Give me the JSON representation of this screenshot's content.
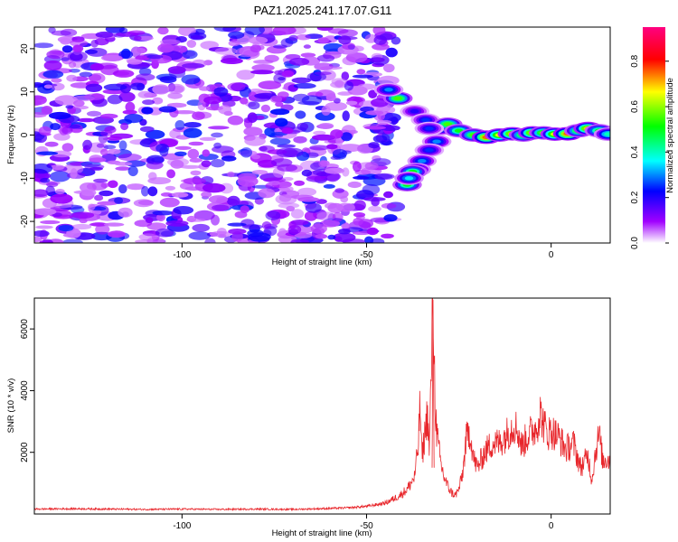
{
  "figure_title": "PAZ1.2025.241.17.07.G11",
  "chart_data": [
    {
      "type": "heatmap",
      "name": "spectrogram",
      "title": "PAZ1.2025.241.17.07.G11",
      "xlabel": "Height of straight line (km)",
      "ylabel": "Frequency (Hz)",
      "xlim": [
        -140,
        16
      ],
      "ylim": [
        -25,
        25
      ],
      "x_ticks": [
        -100,
        -50,
        0
      ],
      "y_ticks": [
        -20,
        -10,
        0,
        10,
        20
      ],
      "colorbar": {
        "label": "Normalized spectral amplitude",
        "range": [
          0,
          0.95
        ],
        "ticks": [
          0,
          0.2,
          0.4,
          0.6,
          0.8
        ],
        "colormap": [
          "#ffffff",
          "#a000ff",
          "#0000ff",
          "#00ffff",
          "#00ff00",
          "#ffff00",
          "#ff0000",
          "#ff0080"
        ]
      },
      "noise_region": {
        "x_range": [
          -140,
          -42
        ],
        "amplitude_range": [
          0.05,
          0.25
        ]
      },
      "signal_blobs": [
        {
          "x": -41.5,
          "y": 8.5,
          "amp": 0.55
        },
        {
          "x": -44,
          "y": 10.5,
          "amp": 0.3
        },
        {
          "x": -37,
          "y": 5.5,
          "amp": 0.2
        },
        {
          "x": -34,
          "y": 3.5,
          "amp": 0.25
        },
        {
          "x": -30,
          "y": 1.5,
          "amp": 0.35
        },
        {
          "x": -28,
          "y": 2.5,
          "amp": 0.55
        },
        {
          "x": -25,
          "y": 1,
          "amp": 0.5
        },
        {
          "x": -21,
          "y": 0,
          "amp": 0.55
        },
        {
          "x": -17.5,
          "y": -0.5,
          "amp": 0.75
        },
        {
          "x": -14,
          "y": 0,
          "amp": 0.65
        },
        {
          "x": -10.5,
          "y": 0.3,
          "amp": 0.7
        },
        {
          "x": -7.5,
          "y": 0,
          "amp": 0.55
        },
        {
          "x": -5,
          "y": 0.5,
          "amp": 0.7
        },
        {
          "x": -2,
          "y": 0.5,
          "amp": 0.6
        },
        {
          "x": 1,
          "y": 0.2,
          "amp": 0.65
        },
        {
          "x": 4.5,
          "y": 0.3,
          "amp": 0.75
        },
        {
          "x": 7.5,
          "y": 1,
          "amp": 0.55
        },
        {
          "x": 10,
          "y": 1.5,
          "amp": 0.7
        },
        {
          "x": 13,
          "y": 1,
          "amp": 0.5
        },
        {
          "x": 15.5,
          "y": 0.2,
          "amp": 0.4
        },
        {
          "x": -31,
          "y": -1.5,
          "amp": 0.3
        },
        {
          "x": -33,
          "y": -3.5,
          "amp": 0.25
        },
        {
          "x": -35,
          "y": -6,
          "amp": 0.3
        },
        {
          "x": -36.5,
          "y": -8,
          "amp": 0.35
        },
        {
          "x": -37.5,
          "y": -8.5,
          "amp": 0.5
        },
        {
          "x": -39,
          "y": -11.5,
          "amp": 0.5
        },
        {
          "x": -38.5,
          "y": -10,
          "amp": 0.35
        },
        {
          "x": -33,
          "y": 1.5,
          "amp": 0.25
        }
      ]
    },
    {
      "type": "line",
      "name": "snr",
      "xlabel": "Height of straight line (km)",
      "ylabel": "SNR (10 * v/v)",
      "xlim": [
        -140,
        16
      ],
      "ylim": [
        0,
        7000
      ],
      "x_ticks": [
        -100,
        -50,
        0
      ],
      "y_ticks": [
        2000,
        4000,
        6000
      ],
      "color": "#e8262b",
      "series": [
        {
          "name": "SNR",
          "points": [
            [
              -140,
              160
            ],
            [
              -130,
              170
            ],
            [
              -120,
              160
            ],
            [
              -110,
              150
            ],
            [
              -100,
              160
            ],
            [
              -90,
              150
            ],
            [
              -80,
              160
            ],
            [
              -70,
              150
            ],
            [
              -60,
              180
            ],
            [
              -55,
              200
            ],
            [
              -50,
              250
            ],
            [
              -45,
              350
            ],
            [
              -41,
              600
            ],
            [
              -39,
              800
            ],
            [
              -37,
              1200
            ],
            [
              -36,
              2200
            ],
            [
              -35.5,
              3600
            ],
            [
              -35,
              1800
            ],
            [
              -34,
              2800
            ],
            [
              -33.5,
              3300
            ],
            [
              -33,
              2000
            ],
            [
              -32.5,
              4500
            ],
            [
              -32,
              6950
            ],
            [
              -31.5,
              4000
            ],
            [
              -31,
              2600
            ],
            [
              -30,
              1700
            ],
            [
              -29,
              1200
            ],
            [
              -28,
              900
            ],
            [
              -27,
              700
            ],
            [
              -26,
              600
            ],
            [
              -25,
              800
            ],
            [
              -24,
              1300
            ],
            [
              -23,
              2400
            ],
            [
              -22,
              2700
            ],
            [
              -21,
              1800
            ],
            [
              -20,
              1500
            ],
            [
              -18,
              2000
            ],
            [
              -16,
              2300
            ],
            [
              -14,
              2300
            ],
            [
              -12,
              2600
            ],
            [
              -10,
              2900
            ],
            [
              -9,
              2700
            ],
            [
              -8,
              2200
            ],
            [
              -6,
              2600
            ],
            [
              -4,
              2800
            ],
            [
              -3,
              3300
            ],
            [
              -2,
              2900
            ],
            [
              -1,
              2600
            ],
            [
              0,
              2700
            ],
            [
              2,
              2500
            ],
            [
              4,
              2100
            ],
            [
              6,
              2300
            ],
            [
              8,
              1500
            ],
            [
              10,
              1900
            ],
            [
              11,
              1100
            ],
            [
              12,
              2000
            ],
            [
              13,
              2600
            ],
            [
              14,
              1700
            ],
            [
              15,
              1800
            ],
            [
              16,
              1700
            ]
          ]
        }
      ]
    }
  ]
}
